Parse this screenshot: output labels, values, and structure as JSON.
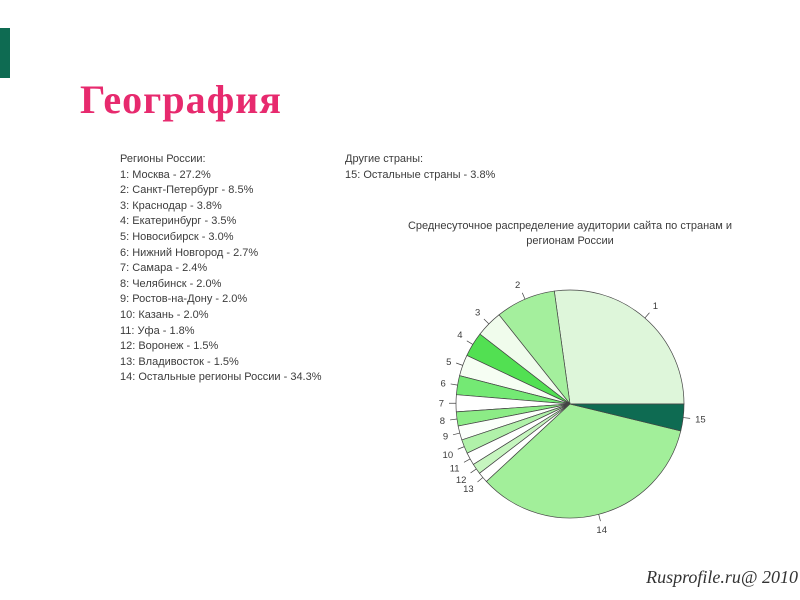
{
  "slide": {
    "title": "География",
    "footer": "Rusprofile.ru@ 2010",
    "accent_color": "#0e6b52",
    "title_color": "#e72a6e"
  },
  "legend": {
    "regions_header": "Регионы России:",
    "regions": [
      "1: Москва - 27.2%",
      "2: Санкт-Петербург - 8.5%",
      "3: Краснодар - 3.8%",
      "4: Екатеринбург - 3.5%",
      "5: Новосибирск - 3.0%",
      "6: Нижний Новгород - 2.7%",
      "7: Самара - 2.4%",
      "8: Челябинск - 2.0%",
      "9: Ростов-на-Дону - 2.0%",
      "10: Казань - 2.0%",
      "11: Уфа - 1.8%",
      "12: Воронеж - 1.5%",
      "13: Владивосток - 1.5%",
      "14: Остальные регионы России - 34.3%"
    ],
    "other_header": "Другие страны:",
    "other": [
      "15: Остальные страны - 3.8%"
    ]
  },
  "chart_data": {
    "type": "pie",
    "title": "Среднесуточное распределение аудитории сайта по странам и регионам России",
    "labels": [
      "1",
      "2",
      "3",
      "4",
      "5",
      "6",
      "7",
      "8",
      "9",
      "10",
      "11",
      "12",
      "13",
      "14",
      "15"
    ],
    "names": [
      "Москва",
      "Санкт-Петербург",
      "Краснодар",
      "Екатеринбург",
      "Новосибирск",
      "Нижний Новгород",
      "Самара",
      "Челябинск",
      "Ростов-на-Дону",
      "Казань",
      "Уфа",
      "Воронеж",
      "Владивосток",
      "Остальные регионы России",
      "Остальные страны"
    ],
    "values": [
      27.2,
      8.5,
      3.8,
      3.5,
      3.0,
      2.7,
      2.4,
      2.0,
      2.0,
      2.0,
      1.8,
      1.5,
      1.5,
      34.3,
      3.8
    ],
    "colors": [
      "#def6da",
      "#a4ef9d",
      "#f0fcec",
      "#52e052",
      "#f6fef3",
      "#74e974",
      "#ffffff",
      "#8cec86",
      "#fbfffa",
      "#b0f1a9",
      "#ffffff",
      "#c6f5bf",
      "#ffffff",
      "#a2ef9a",
      "#0e6b52"
    ],
    "stroke_color": "#444444",
    "start_angle_deg": 0,
    "direction": "counterclockwise",
    "legend_position": "left"
  }
}
